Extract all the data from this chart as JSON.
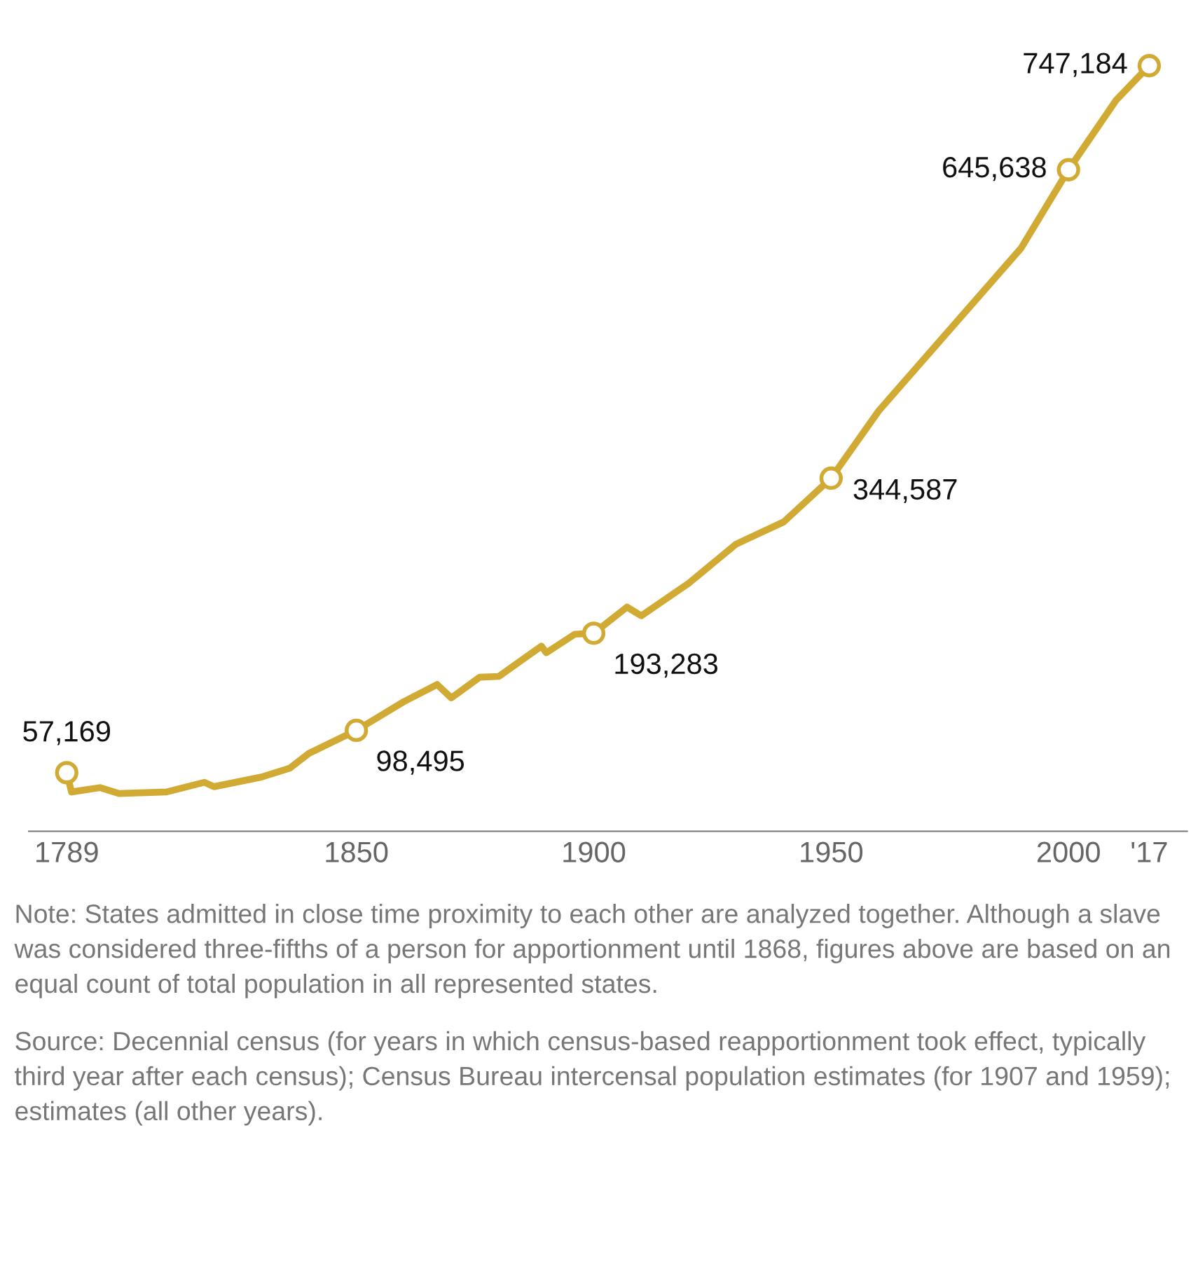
{
  "chart_data": {
    "type": "line",
    "x": [
      1789,
      1790,
      1796,
      1800,
      1810,
      1818,
      1820,
      1830,
      1836,
      1840,
      1850,
      1860,
      1867,
      1870,
      1876,
      1880,
      1889,
      1890,
      1896,
      1900,
      1907,
      1910,
      1920,
      1930,
      1940,
      1950,
      1960,
      1990,
      2000,
      2010,
      2017
    ],
    "series": [
      {
        "color": "#d1aa33",
        "values": [
          57169,
          38400,
          42600,
          36800,
          38400,
          47800,
          43500,
          52900,
          61600,
          76000,
          98495,
          126500,
          143200,
          130200,
          150400,
          151100,
          180700,
          174200,
          192300,
          193283,
          218800,
          210300,
          242100,
          280300,
          301900,
          344587,
          410200,
          569100,
          645638,
          713400,
          747184
        ],
        "value_labels": [
          "57,169",
          null,
          null,
          null,
          null,
          null,
          null,
          null,
          null,
          null,
          "98,495",
          null,
          null,
          null,
          null,
          null,
          null,
          null,
          null,
          "193,283",
          null,
          null,
          null,
          null,
          null,
          "344,587",
          null,
          null,
          "645,638",
          null,
          "747,184"
        ]
      }
    ],
    "xlim": [
      1781,
      2025
    ],
    "xticks": [
      1789,
      1850,
      1900,
      1950,
      2000,
      {
        "value": 2017,
        "label": "'17"
      }
    ],
    "tick_labels": "x",
    "grid": false,
    "annotations": [
      "Note: States admitted in close time proximity to each other are analyzed together. Although a slave was considered three-fifths of a person for apportionment until 1868, figures above are based on an equal count of total population in all represented states.",
      "Source: Decennial census (for years in which census-based reapportionment took effect, typically third year after each census); Census Bureau intercensal population estimates (for 1907 and 1959); estimates (all other years)."
    ]
  }
}
